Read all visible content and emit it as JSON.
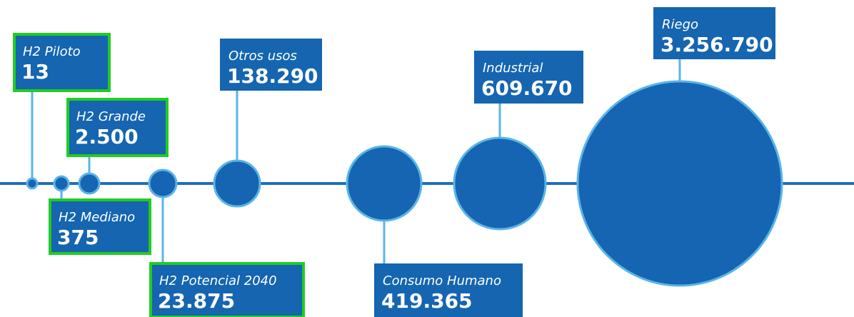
{
  "items": [
    {
      "label": "H2 Piloto",
      "value": "13"
    },
    {
      "label": "H2 Mediano",
      "value": "375"
    },
    {
      "label": "H2 Grande",
      "value": "2.500"
    },
    {
      "label": "H2 Potencial 2040",
      "value": "23.875"
    },
    {
      "label": "Otros usos",
      "value": "138.290"
    },
    {
      "label": "Consumo Humano",
      "value": "419.365"
    },
    {
      "label": "Industrial",
      "value": "609.670"
    },
    {
      "label": "Riego",
      "value": "3.256.790"
    }
  ]
}
